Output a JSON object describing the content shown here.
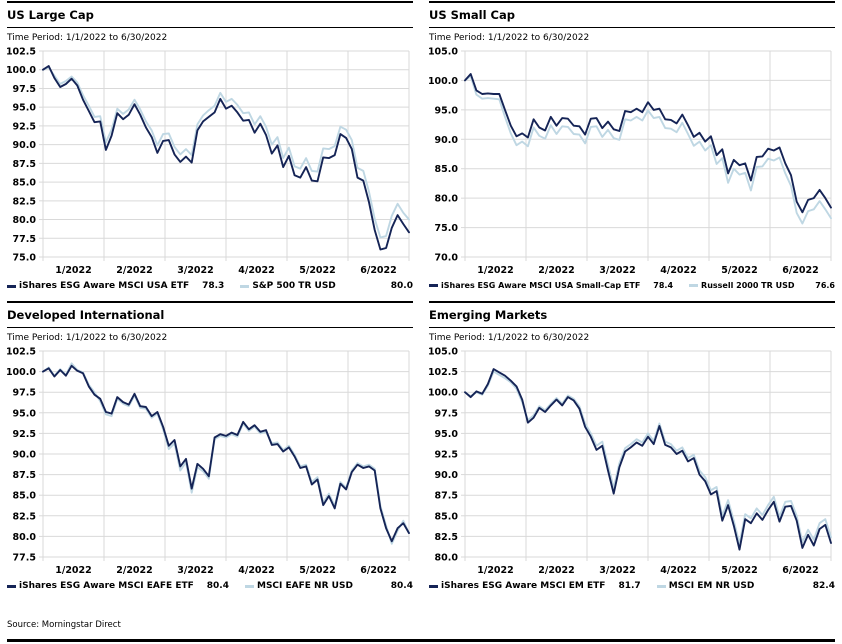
{
  "page": {
    "source": "Source: Morningstar Direct"
  },
  "colors": {
    "esg_line": "#152456",
    "benchmark_line": "#BFD7E3",
    "grid": "#D9D9D9",
    "text": "#000000"
  },
  "chart_data": [
    {
      "type": "line",
      "title": "US Large Cap",
      "subtitle": "Time Period: 1/1/2022 to 6/30/2022",
      "grid": true,
      "legend_position": "bottom",
      "ylim": [
        75.0,
        102.5
      ],
      "yticks": [
        102.5,
        100.0,
        97.5,
        95.0,
        92.5,
        90.0,
        87.5,
        85.0,
        82.5,
        80.0,
        77.5,
        75.0
      ],
      "xticklabels": [
        "1/2022",
        "2/2022",
        "3/2022",
        "4/2022",
        "5/2022",
        "6/2022"
      ],
      "series": [
        {
          "name": "iShares ESG Aware MSCI USA ETF",
          "end_label": "78.3",
          "color": "#152456",
          "values": [
            100.0,
            100.5,
            98.9,
            97.7,
            98.1,
            98.8,
            97.9,
            96.0,
            94.5,
            93.0,
            93.1,
            89.3,
            91.2,
            94.2,
            93.4,
            94.0,
            95.4,
            94.0,
            92.3,
            91.0,
            88.9,
            90.5,
            90.6,
            88.7,
            87.7,
            88.4,
            87.6,
            91.9,
            93.1,
            93.7,
            94.3,
            96.1,
            94.8,
            95.2,
            94.3,
            93.2,
            93.3,
            91.6,
            92.8,
            91.3,
            88.8,
            89.9,
            87.0,
            88.5,
            85.9,
            85.6,
            87.0,
            85.2,
            85.1,
            88.3,
            88.2,
            88.6,
            91.4,
            90.9,
            89.4,
            85.6,
            85.2,
            82.3,
            78.6,
            76.0,
            76.2,
            78.9,
            80.6,
            79.4,
            78.3
          ]
        },
        {
          "name": "S&P 500 TR USD",
          "end_label": "80.0",
          "color": "#BFD7E3",
          "values": [
            100.0,
            100.3,
            99.2,
            98.1,
            98.5,
            99.1,
            98.3,
            96.6,
            95.2,
            93.7,
            93.8,
            90.3,
            92.0,
            94.8,
            94.1,
            94.7,
            96.0,
            94.7,
            93.1,
            91.9,
            89.9,
            91.4,
            91.5,
            89.7,
            88.7,
            89.4,
            88.6,
            92.7,
            93.9,
            94.6,
            95.2,
            96.9,
            95.7,
            96.1,
            95.3,
            94.2,
            94.3,
            92.7,
            93.8,
            92.4,
            90.0,
            91.0,
            88.2,
            89.6,
            87.1,
            86.8,
            88.2,
            86.5,
            86.4,
            89.5,
            89.4,
            89.8,
            92.4,
            92.0,
            90.6,
            86.9,
            86.5,
            83.7,
            80.1,
            77.6,
            77.8,
            80.5,
            82.1,
            80.9,
            80.0
          ]
        }
      ]
    },
    {
      "type": "line",
      "title": "US Small Cap",
      "subtitle": "Time Period: 1/1/2022 to 6/30/2022",
      "grid": true,
      "legend_position": "bottom",
      "ylim": [
        70.0,
        105.0
      ],
      "yticks": [
        105.0,
        100.0,
        95.0,
        90.0,
        85.0,
        80.0,
        75.0,
        70.0
      ],
      "xticklabels": [
        "1/2022",
        "2/2022",
        "3/2022",
        "4/2022",
        "5/2022",
        "6/2022"
      ],
      "series": [
        {
          "name": "iShares ESG Aware MSCI USA Small-Cap ETF",
          "end_label": "78.4",
          "color": "#152456",
          "values": [
            100.0,
            101.1,
            98.3,
            97.7,
            97.8,
            97.7,
            97.7,
            95.0,
            92.3,
            90.5,
            91.0,
            90.3,
            93.4,
            92.0,
            91.5,
            93.8,
            92.3,
            93.6,
            93.5,
            92.3,
            92.2,
            90.8,
            93.5,
            93.6,
            91.9,
            93.0,
            91.7,
            91.4,
            94.8,
            94.6,
            95.2,
            94.6,
            96.3,
            95.0,
            95.2,
            93.4,
            93.3,
            92.7,
            94.2,
            92.4,
            90.4,
            91.1,
            89.6,
            90.5,
            87.3,
            88.3,
            84.2,
            86.5,
            85.6,
            85.9,
            83.0,
            87.0,
            87.1,
            88.4,
            88.1,
            88.6,
            85.9,
            83.9,
            79.4,
            77.6,
            79.7,
            80.0,
            81.4,
            80.0,
            78.4
          ]
        },
        {
          "name": "Russell 2000 TR USD",
          "end_label": "76.6",
          "color": "#BFD7E3",
          "values": [
            100.0,
            100.7,
            97.6,
            96.9,
            97.0,
            96.9,
            96.8,
            93.8,
            91.0,
            89.0,
            89.6,
            88.8,
            92.0,
            90.6,
            90.1,
            92.4,
            90.9,
            92.2,
            92.1,
            90.9,
            90.8,
            89.3,
            92.1,
            92.2,
            90.4,
            91.6,
            90.2,
            89.9,
            93.4,
            93.2,
            93.8,
            93.2,
            94.9,
            93.6,
            93.8,
            91.9,
            91.8,
            91.2,
            92.8,
            90.9,
            88.9,
            89.6,
            88.1,
            89.0,
            85.8,
            86.8,
            82.6,
            85.0,
            84.0,
            84.3,
            81.3,
            85.3,
            85.4,
            86.7,
            86.4,
            86.9,
            84.2,
            82.1,
            77.5,
            75.7,
            77.8,
            78.1,
            79.5,
            78.1,
            76.6
          ]
        }
      ]
    },
    {
      "type": "line",
      "title": "Developed International",
      "subtitle": "Time Period: 1/1/2022 to 6/30/2022",
      "grid": true,
      "legend_position": "bottom",
      "ylim": [
        77.5,
        102.5
      ],
      "yticks": [
        102.5,
        100.0,
        97.5,
        95.0,
        92.5,
        90.0,
        87.5,
        85.0,
        82.5,
        80.0,
        77.5
      ],
      "xticklabels": [
        "1/2022",
        "2/2022",
        "3/2022",
        "4/2022",
        "5/2022",
        "6/2022"
      ],
      "series": [
        {
          "name": "iShares ESG Aware MSCI EAFE ETF",
          "end_label": "80.4",
          "color": "#152456",
          "values": [
            100.0,
            100.4,
            99.4,
            100.2,
            99.5,
            100.7,
            100.1,
            99.8,
            98.2,
            97.2,
            96.7,
            95.1,
            94.9,
            96.9,
            96.3,
            96.0,
            97.3,
            95.8,
            95.7,
            94.6,
            95.1,
            93.3,
            91.0,
            91.7,
            88.5,
            89.4,
            85.8,
            88.8,
            88.2,
            87.3,
            92.0,
            92.4,
            92.2,
            92.6,
            92.3,
            93.9,
            93.0,
            93.5,
            92.7,
            92.9,
            91.1,
            91.2,
            90.3,
            90.8,
            89.7,
            88.3,
            88.5,
            86.3,
            86.9,
            83.8,
            84.9,
            83.4,
            86.4,
            85.7,
            87.8,
            88.7,
            88.3,
            88.5,
            88.0,
            83.4,
            81.0,
            79.4,
            81.0,
            81.6,
            80.4
          ]
        },
        {
          "name": "MSCI EAFE NR USD",
          "end_label": "80.4",
          "color": "#BFD7E3",
          "values": [
            100.0,
            100.5,
            99.5,
            100.3,
            99.6,
            101.0,
            100.2,
            99.9,
            98.4,
            97.5,
            96.4,
            94.8,
            94.6,
            96.7,
            96.1,
            95.8,
            97.1,
            95.6,
            95.5,
            94.4,
            94.9,
            93.0,
            90.6,
            91.3,
            88.0,
            89.0,
            85.3,
            88.4,
            87.9,
            87.0,
            91.8,
            92.2,
            92.0,
            92.4,
            92.1,
            93.7,
            92.8,
            93.3,
            92.5,
            92.7,
            91.3,
            91.4,
            90.5,
            91.0,
            89.9,
            88.5,
            88.7,
            86.6,
            87.2,
            84.1,
            85.2,
            83.7,
            86.6,
            85.9,
            88.0,
            88.9,
            88.5,
            88.7,
            88.2,
            83.7,
            81.3,
            79.1,
            80.7,
            81.9,
            80.4
          ]
        }
      ]
    },
    {
      "type": "line",
      "title": "Emerging Markets",
      "subtitle": "Time Period: 1/1/2022 to 6/30/2022",
      "grid": true,
      "legend_position": "bottom",
      "ylim": [
        80.0,
        105.0
      ],
      "yticks": [
        105.0,
        102.5,
        100.0,
        97.5,
        95.0,
        92.5,
        90.0,
        87.5,
        85.0,
        82.5,
        80.0
      ],
      "xticklabels": [
        "1/2022",
        "2/2022",
        "3/2022",
        "4/2022",
        "5/2022",
        "6/2022"
      ],
      "series": [
        {
          "name": "iShares ESG Aware MSCI EM ETF",
          "end_label": "81.7",
          "color": "#152456",
          "values": [
            100.0,
            99.4,
            100.1,
            99.8,
            101.0,
            102.8,
            102.4,
            102.0,
            101.4,
            100.7,
            99.1,
            96.3,
            96.9,
            98.1,
            97.6,
            98.4,
            99.1,
            98.4,
            99.4,
            99.0,
            98.0,
            95.8,
            94.6,
            93.0,
            93.5,
            90.5,
            87.7,
            90.9,
            92.8,
            93.3,
            93.9,
            93.5,
            94.6,
            93.7,
            95.9,
            93.6,
            93.3,
            92.5,
            92.9,
            91.6,
            92.0,
            90.0,
            89.2,
            87.6,
            88.0,
            84.4,
            86.3,
            83.8,
            80.9,
            84.6,
            84.1,
            85.3,
            84.5,
            85.7,
            86.7,
            84.3,
            86.1,
            86.2,
            84.4,
            81.1,
            82.7,
            81.4,
            83.4,
            83.9,
            81.7
          ]
        },
        {
          "name": "MSCI EM NR USD",
          "end_label": "82.4",
          "color": "#BFD7E3",
          "values": [
            100.0,
            99.5,
            100.0,
            99.7,
            100.8,
            102.5,
            102.1,
            101.7,
            101.2,
            100.4,
            98.8,
            96.6,
            97.2,
            98.3,
            97.8,
            98.6,
            99.3,
            98.6,
            99.6,
            99.2,
            98.3,
            96.2,
            95.0,
            93.5,
            94.0,
            91.2,
            88.4,
            91.4,
            93.2,
            93.7,
            94.3,
            93.9,
            95.0,
            94.1,
            96.2,
            94.0,
            93.7,
            92.9,
            93.3,
            92.0,
            92.4,
            90.5,
            89.7,
            88.1,
            88.5,
            85.0,
            86.9,
            84.4,
            81.6,
            85.2,
            84.7,
            85.9,
            85.1,
            86.3,
            87.3,
            84.9,
            86.7,
            86.8,
            85.0,
            81.8,
            83.3,
            82.1,
            84.1,
            84.6,
            82.4
          ]
        }
      ]
    }
  ]
}
